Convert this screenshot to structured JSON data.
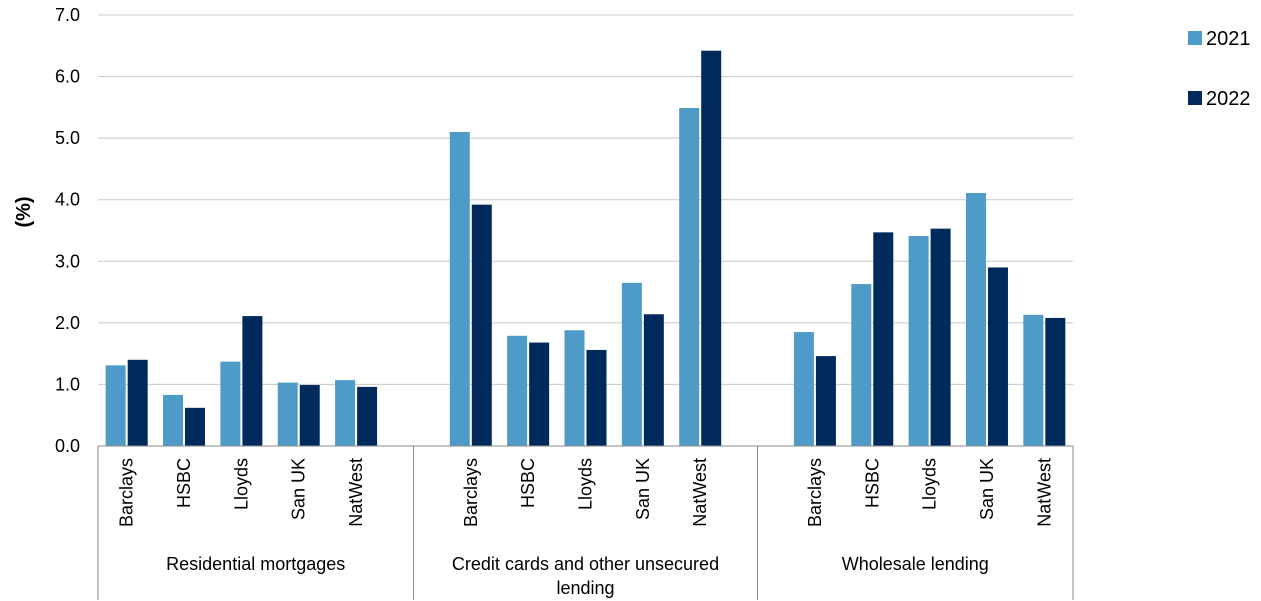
{
  "chart_data": {
    "type": "bar",
    "ylabel": "(%)",
    "ylim": [
      0,
      7
    ],
    "yticks": [
      "0.0",
      "1.0",
      "2.0",
      "3.0",
      "4.0",
      "5.0",
      "6.0",
      "7.0"
    ],
    "grid": true,
    "legend_position": "top-right",
    "groups": [
      {
        "label": "Residential mortgages",
        "categories": [
          "Barclays",
          "HSBC",
          "Lloyds",
          "San UK",
          "NatWest"
        ],
        "series": [
          {
            "name": "2021",
            "values": [
              1.31,
              0.83,
              1.37,
              1.03,
              1.07
            ]
          },
          {
            "name": "2022",
            "values": [
              1.4,
              0.62,
              2.11,
              0.99,
              0.96
            ]
          }
        ]
      },
      {
        "label": "Credit cards and other unsecured lending",
        "categories": [
          "Barclays",
          "HSBC",
          "Lloyds",
          "San UK",
          "NatWest"
        ],
        "series": [
          {
            "name": "2021",
            "values": [
              5.1,
              1.79,
              1.88,
              2.65,
              5.49
            ]
          },
          {
            "name": "2022",
            "values": [
              3.92,
              1.68,
              1.56,
              2.14,
              6.42
            ]
          }
        ]
      },
      {
        "label": "Wholesale lending",
        "categories": [
          "Barclays",
          "HSBC",
          "Lloyds",
          "San UK",
          "NatWest"
        ],
        "series": [
          {
            "name": "2021",
            "values": [
              1.85,
              2.63,
              3.41,
              4.11,
              2.13
            ]
          },
          {
            "name": "2022",
            "values": [
              1.46,
              3.47,
              3.53,
              2.9,
              2.08
            ]
          }
        ]
      }
    ],
    "legend": [
      {
        "name": "2021",
        "color": "#4f9bc7"
      },
      {
        "name": "2022",
        "color": "#002a5c"
      }
    ]
  }
}
